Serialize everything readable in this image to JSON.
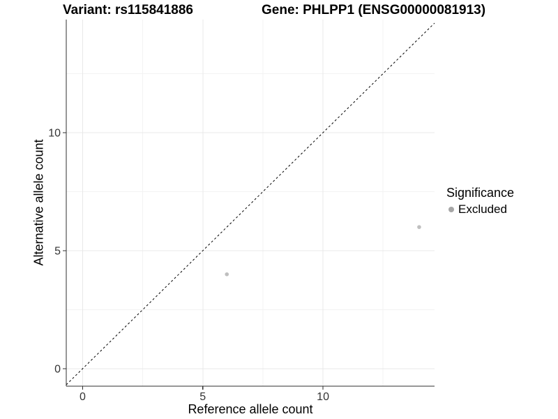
{
  "titles": {
    "left": "Variant: rs115841886",
    "right": "Gene: PHLPP1 (ENSG00000081913)"
  },
  "chart_data": {
    "type": "scatter",
    "xlabel": "Reference allele count",
    "ylabel": "Alternative allele count",
    "xlim": [
      -0.68,
      14.64
    ],
    "ylim": [
      -0.74,
      14.79
    ],
    "x_ticks": [
      0,
      5,
      10
    ],
    "y_ticks": [
      0,
      5,
      10
    ],
    "x_minor_ticks": [
      2.5,
      7.5,
      12.5
    ],
    "y_minor_ticks": [
      2.5,
      7.5,
      12.5
    ],
    "grid": true,
    "series": [
      {
        "name": "Excluded",
        "color": "#bfbfbf",
        "points": [
          {
            "x": 6,
            "y": 4
          },
          {
            "x": 14,
            "y": 6
          }
        ]
      }
    ],
    "identity_line": {
      "style": "dashed",
      "color": "#000000",
      "equation": "y = x"
    },
    "legend": {
      "position": "right",
      "title": "Significance",
      "items": [
        {
          "label": "Excluded",
          "color": "#a6a6a6"
        }
      ]
    },
    "colors": {
      "axis_line": "#2f2f2f",
      "tick_text": "#333333",
      "grid_major": "#e8e8e8",
      "grid_minor": "#f3f3f3",
      "point": "#bfbfbf",
      "background": "#ffffff"
    }
  }
}
